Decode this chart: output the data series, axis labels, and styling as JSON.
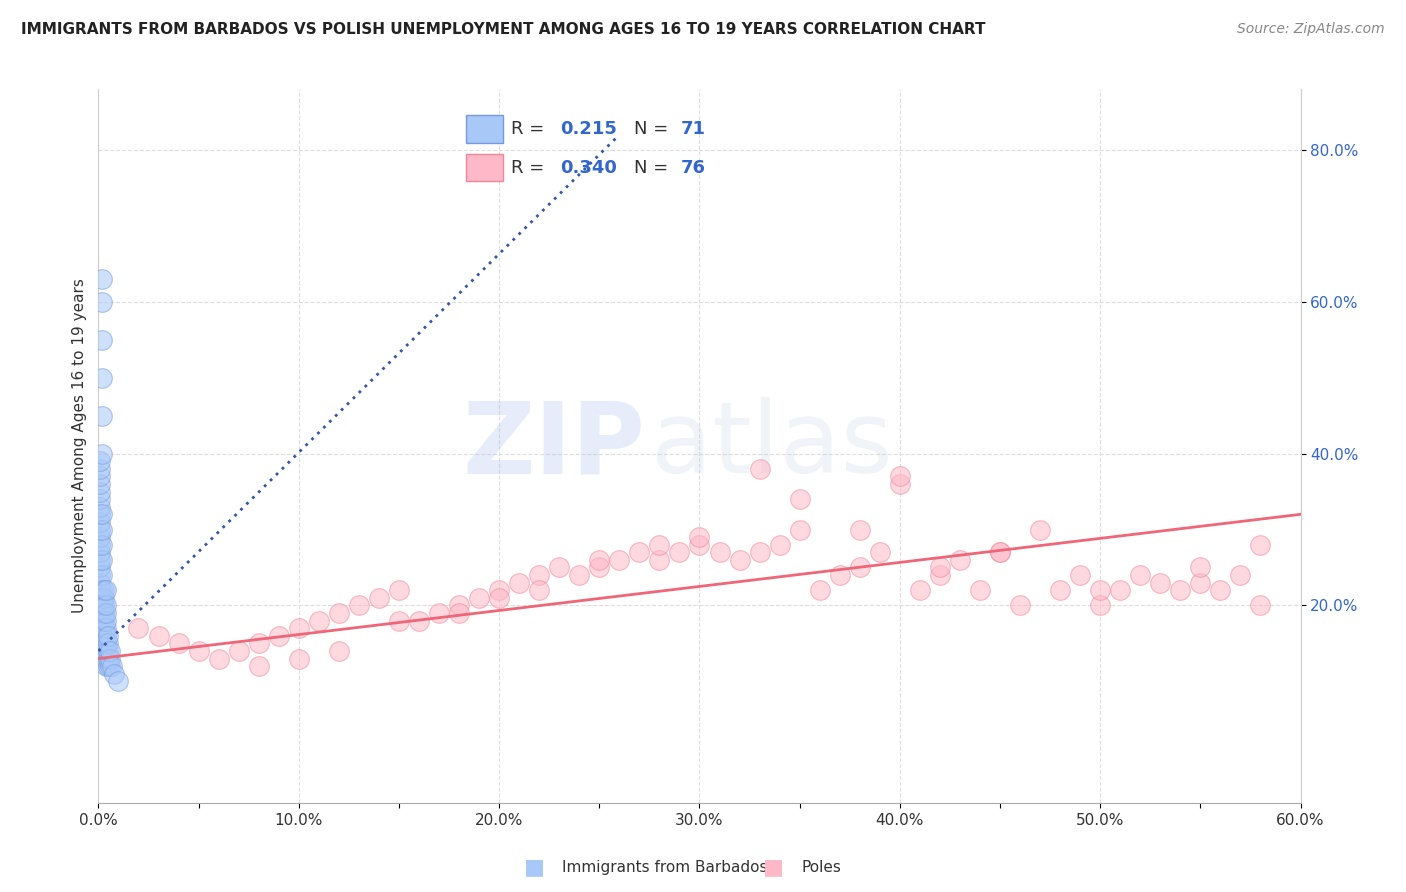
{
  "title": "IMMIGRANTS FROM BARBADOS VS POLISH UNEMPLOYMENT AMONG AGES 16 TO 19 YEARS CORRELATION CHART",
  "source": "Source: ZipAtlas.com",
  "ylabel": "Unemployment Among Ages 16 to 19 years",
  "watermark_zip": "ZIP",
  "watermark_atlas": "Atlas",
  "xlim": [
    0.0,
    0.6
  ],
  "ylim": [
    -0.06,
    0.88
  ],
  "xtick_labels": [
    "0.0%",
    "",
    "10.0%",
    "",
    "20.0%",
    "",
    "30.0%",
    "",
    "40.0%",
    "",
    "50.0%",
    "",
    "60.0%"
  ],
  "xtick_vals": [
    0.0,
    0.05,
    0.1,
    0.15,
    0.2,
    0.25,
    0.3,
    0.35,
    0.4,
    0.45,
    0.5,
    0.55,
    0.6
  ],
  "ytick_vals": [
    0.2,
    0.4,
    0.6,
    0.8
  ],
  "ytick_labels": [
    "20.0%",
    "40.0%",
    "60.0%",
    "80.0%"
  ],
  "r_blue": "0.215",
  "n_blue": "71",
  "r_pink": "0.340",
  "n_pink": "76",
  "blue_fill": "#A8C8F8",
  "blue_edge": "#7799DD",
  "pink_fill": "#FFB8C8",
  "pink_edge": "#EE8899",
  "blue_trend_color": "#3355AA",
  "pink_trend_color": "#EE6677",
  "grid_color": "#DDDDDD",
  "rn_text_color": "#3366CC",
  "legend_label_blue": "Immigrants from Barbados",
  "legend_label_pink": "Poles",
  "blue_scatter_x": [
    0.001,
    0.001,
    0.001,
    0.001,
    0.001,
    0.001,
    0.001,
    0.001,
    0.001,
    0.001,
    0.001,
    0.001,
    0.001,
    0.001,
    0.001,
    0.001,
    0.001,
    0.001,
    0.001,
    0.001,
    0.002,
    0.002,
    0.002,
    0.002,
    0.002,
    0.002,
    0.002,
    0.002,
    0.002,
    0.002,
    0.002,
    0.002,
    0.002,
    0.002,
    0.002,
    0.002,
    0.002,
    0.002,
    0.002,
    0.002,
    0.003,
    0.003,
    0.003,
    0.003,
    0.003,
    0.003,
    0.003,
    0.003,
    0.003,
    0.003,
    0.004,
    0.004,
    0.004,
    0.004,
    0.004,
    0.004,
    0.004,
    0.004,
    0.004,
    0.004,
    0.005,
    0.005,
    0.005,
    0.005,
    0.005,
    0.006,
    0.006,
    0.006,
    0.007,
    0.008,
    0.01
  ],
  "blue_scatter_y": [
    0.2,
    0.21,
    0.22,
    0.23,
    0.24,
    0.25,
    0.26,
    0.27,
    0.28,
    0.29,
    0.3,
    0.31,
    0.32,
    0.33,
    0.34,
    0.35,
    0.36,
    0.37,
    0.38,
    0.39,
    0.14,
    0.15,
    0.16,
    0.17,
    0.18,
    0.19,
    0.2,
    0.21,
    0.22,
    0.24,
    0.26,
    0.28,
    0.3,
    0.32,
    0.4,
    0.45,
    0.5,
    0.55,
    0.6,
    0.63,
    0.13,
    0.14,
    0.15,
    0.16,
    0.17,
    0.18,
    0.19,
    0.2,
    0.21,
    0.22,
    0.12,
    0.13,
    0.14,
    0.15,
    0.16,
    0.17,
    0.18,
    0.19,
    0.2,
    0.22,
    0.12,
    0.13,
    0.14,
    0.15,
    0.16,
    0.12,
    0.13,
    0.14,
    0.12,
    0.11,
    0.1
  ],
  "pink_scatter_x": [
    0.02,
    0.03,
    0.04,
    0.05,
    0.06,
    0.07,
    0.08,
    0.09,
    0.1,
    0.11,
    0.12,
    0.13,
    0.14,
    0.15,
    0.16,
    0.17,
    0.18,
    0.19,
    0.2,
    0.21,
    0.22,
    0.23,
    0.24,
    0.25,
    0.26,
    0.27,
    0.28,
    0.29,
    0.3,
    0.31,
    0.32,
    0.33,
    0.34,
    0.35,
    0.36,
    0.37,
    0.38,
    0.39,
    0.4,
    0.41,
    0.42,
    0.43,
    0.44,
    0.45,
    0.46,
    0.47,
    0.48,
    0.49,
    0.5,
    0.51,
    0.52,
    0.53,
    0.54,
    0.55,
    0.56,
    0.57,
    0.58,
    0.08,
    0.1,
    0.12,
    0.15,
    0.18,
    0.2,
    0.22,
    0.25,
    0.28,
    0.3,
    0.33,
    0.35,
    0.38,
    0.4,
    0.42,
    0.45,
    0.5,
    0.55,
    0.58
  ],
  "pink_scatter_y": [
    0.17,
    0.16,
    0.15,
    0.14,
    0.13,
    0.14,
    0.15,
    0.16,
    0.17,
    0.18,
    0.19,
    0.2,
    0.21,
    0.22,
    0.18,
    0.19,
    0.2,
    0.21,
    0.22,
    0.23,
    0.24,
    0.25,
    0.24,
    0.25,
    0.26,
    0.27,
    0.26,
    0.27,
    0.28,
    0.27,
    0.26,
    0.27,
    0.28,
    0.3,
    0.22,
    0.24,
    0.25,
    0.27,
    0.36,
    0.22,
    0.24,
    0.26,
    0.22,
    0.27,
    0.2,
    0.3,
    0.22,
    0.24,
    0.2,
    0.22,
    0.24,
    0.23,
    0.22,
    0.23,
    0.22,
    0.24,
    0.28,
    0.12,
    0.13,
    0.14,
    0.18,
    0.19,
    0.21,
    0.22,
    0.26,
    0.28,
    0.29,
    0.38,
    0.34,
    0.3,
    0.37,
    0.25,
    0.27,
    0.22,
    0.25,
    0.2
  ],
  "blue_trend_x": [
    0.0,
    0.26
  ],
  "blue_trend_y": [
    0.14,
    0.82
  ],
  "pink_trend_x": [
    0.0,
    0.6
  ],
  "pink_trend_y": [
    0.13,
    0.32
  ]
}
